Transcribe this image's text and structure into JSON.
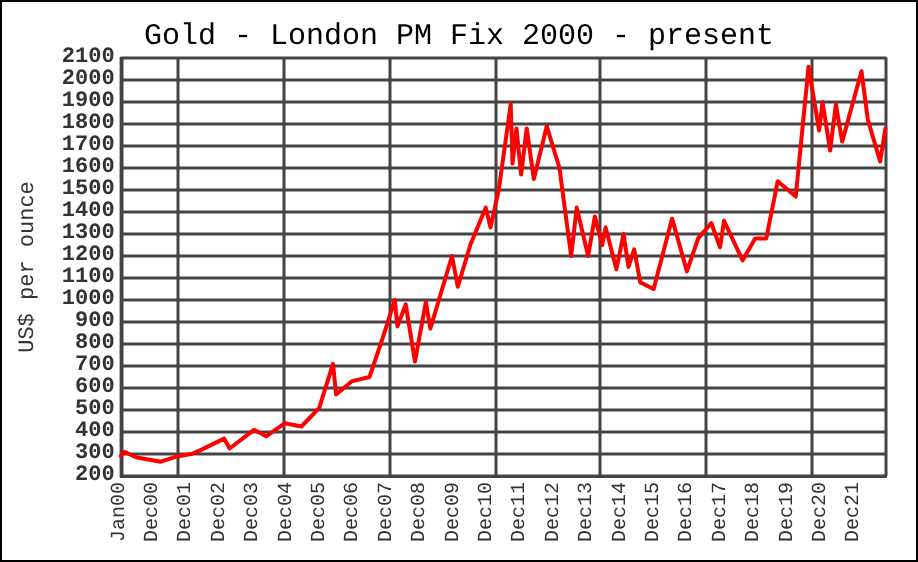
{
  "chart_data": {
    "type": "line",
    "title": "Gold - London PM Fix 2000 - present",
    "ylabel": "US$ per ounce",
    "x": [
      "2000-01-04",
      "2000-02-10",
      "2000-06-15",
      "2001-03-15",
      "2001-09-20",
      "2002-02-15",
      "2002-06-05",
      "2003-02-05",
      "2003-04-07",
      "2003-12-30",
      "2004-04-01",
      "2004-05-10",
      "2004-12-02",
      "2005-06-01",
      "2005-12-12",
      "2006-05-12",
      "2006-06-14",
      "2006-12-01",
      "2007-06-15",
      "2007-11-08",
      "2008-03-17",
      "2008-04-15",
      "2008-07-15",
      "2008-10-24",
      "2009-02-20",
      "2009-04-10",
      "2009-12-03",
      "2010-02-05",
      "2010-06-21",
      "2010-12-07",
      "2011-01-28",
      "2011-04-28",
      "2011-09-06",
      "2011-09-26",
      "2011-11-08",
      "2011-12-29",
      "2012-02-28",
      "2012-05-16",
      "2012-10-04",
      "2013-02-20",
      "2013-06-28",
      "2013-08-28",
      "2013-12-31",
      "2014-03-14",
      "2014-06-02",
      "2014-07-10",
      "2014-11-05",
      "2015-01-22",
      "2015-03-17",
      "2015-05-18",
      "2015-07-24",
      "2015-12-17",
      "2016-07-06",
      "2016-12-15",
      "2017-04-17",
      "2017-09-08",
      "2017-12-12",
      "2018-01-25",
      "2018-08-16",
      "2018-12-31",
      "2019-05-02",
      "2019-09-04",
      "2020-03-19",
      "2020-08-06",
      "2020-11-30",
      "2021-01-06",
      "2021-03-30",
      "2021-06-01",
      "2021-08-09",
      "2022-03-08",
      "2022-05-16",
      "2022-09-28",
      "2022-11-25"
    ],
    "series": [
      {
        "color": "#ff0000",
        "values": [
          290,
          310,
          285,
          265,
          290,
          300,
          320,
          370,
          325,
          410,
          390,
          380,
          440,
          425,
          510,
          710,
          570,
          630,
          650,
          830,
          1000,
          880,
          980,
          720,
          990,
          870,
          1200,
          1060,
          1250,
          1420,
          1330,
          1500,
          1890,
          1620,
          1780,
          1570,
          1780,
          1550,
          1790,
          1600,
          1200,
          1420,
          1200,
          1380,
          1250,
          1330,
          1140,
          1300,
          1150,
          1230,
          1080,
          1050,
          1370,
          1130,
          1280,
          1350,
          1240,
          1360,
          1180,
          1280,
          1280,
          1540,
          1470,
          2060,
          1770,
          1900,
          1680,
          1890,
          1720,
          2040,
          1820,
          1630,
          1780
        ]
      }
    ],
    "xlim": [
      "2000-01-01",
      "2022-12-01"
    ],
    "xticks": [
      {
        "value": "2000-01-01",
        "label": "Jan00"
      },
      {
        "value": "2000-12-31",
        "label": "Dec00"
      },
      {
        "value": "2001-12-31",
        "label": "Dec01"
      },
      {
        "value": "2002-12-31",
        "label": "Dec02"
      },
      {
        "value": "2003-12-31",
        "label": "Dec03"
      },
      {
        "value": "2004-12-31",
        "label": "Dec04"
      },
      {
        "value": "2005-12-31",
        "label": "Dec05"
      },
      {
        "value": "2006-12-31",
        "label": "Dec06"
      },
      {
        "value": "2007-12-31",
        "label": "Dec07"
      },
      {
        "value": "2008-12-31",
        "label": "Dec08"
      },
      {
        "value": "2009-12-31",
        "label": "Dec09"
      },
      {
        "value": "2010-12-31",
        "label": "Dec10"
      },
      {
        "value": "2011-12-31",
        "label": "Dec11"
      },
      {
        "value": "2012-12-31",
        "label": "Dec12"
      },
      {
        "value": "2013-12-31",
        "label": "Dec13"
      },
      {
        "value": "2014-12-31",
        "label": "Dec14"
      },
      {
        "value": "2015-12-31",
        "label": "Dec15"
      },
      {
        "value": "2016-12-31",
        "label": "Dec16"
      },
      {
        "value": "2017-12-31",
        "label": "Dec17"
      },
      {
        "value": "2018-12-31",
        "label": "Dec18"
      },
      {
        "value": "2019-12-31",
        "label": "Dec19"
      },
      {
        "value": "2020-12-31",
        "label": "Dec20"
      },
      {
        "value": "2021-12-31",
        "label": "Dec21"
      }
    ],
    "ylim": [
      200,
      2100
    ],
    "yticks": [
      200,
      300,
      400,
      500,
      600,
      700,
      800,
      900,
      1000,
      1100,
      1200,
      1300,
      1400,
      1500,
      1600,
      1700,
      1800,
      1900,
      2000,
      2100
    ],
    "grid": true,
    "marker": "none",
    "line_style": "solid"
  }
}
